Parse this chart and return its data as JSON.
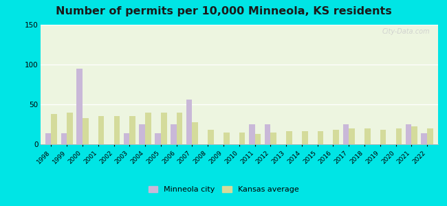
{
  "title": "Number of permits per 10,000 Minneola, KS residents",
  "years": [
    1998,
    1999,
    2000,
    2001,
    2002,
    2003,
    2004,
    2005,
    2006,
    2007,
    2008,
    2009,
    2010,
    2011,
    2012,
    2013,
    2014,
    2015,
    2016,
    2017,
    2018,
    2019,
    2020,
    2021,
    2022
  ],
  "minneola": [
    14,
    14,
    95,
    0,
    0,
    14,
    25,
    14,
    25,
    56,
    0,
    0,
    0,
    25,
    25,
    0,
    0,
    0,
    0,
    25,
    0,
    0,
    0,
    25,
    14
  ],
  "kansas": [
    38,
    40,
    33,
    35,
    35,
    35,
    40,
    40,
    40,
    28,
    18,
    15,
    15,
    13,
    15,
    16,
    16,
    16,
    18,
    20,
    20,
    18,
    20,
    22,
    20
  ],
  "minneola_color": "#c9b8d8",
  "kansas_color": "#d4db9b",
  "plot_bg_color": "#edf5e0",
  "outer_color": "#00e5e5",
  "ylim": [
    0,
    150
  ],
  "yticks": [
    0,
    50,
    100,
    150
  ],
  "bar_width": 0.38,
  "title_fontsize": 11.5,
  "legend_minneola": "Minneola city",
  "legend_kansas": "Kansas average"
}
